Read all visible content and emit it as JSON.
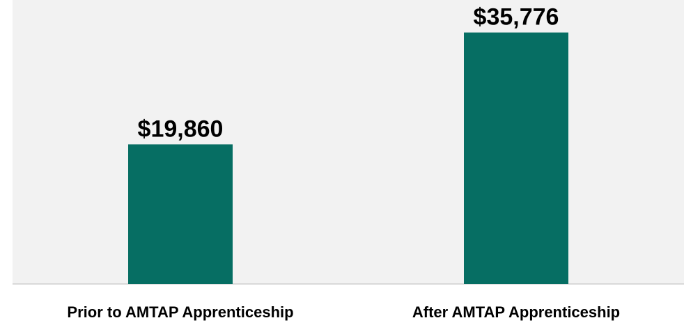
{
  "chart_data": {
    "type": "bar",
    "categories": [
      "Prior to AMTAP Apprenticeship",
      "After AMTAP Apprenticeship"
    ],
    "values": [
      19860,
      35776
    ],
    "value_labels": [
      "$19,860",
      "$35,776"
    ],
    "color": "#066e63",
    "ylim": [
      0,
      40000
    ]
  }
}
